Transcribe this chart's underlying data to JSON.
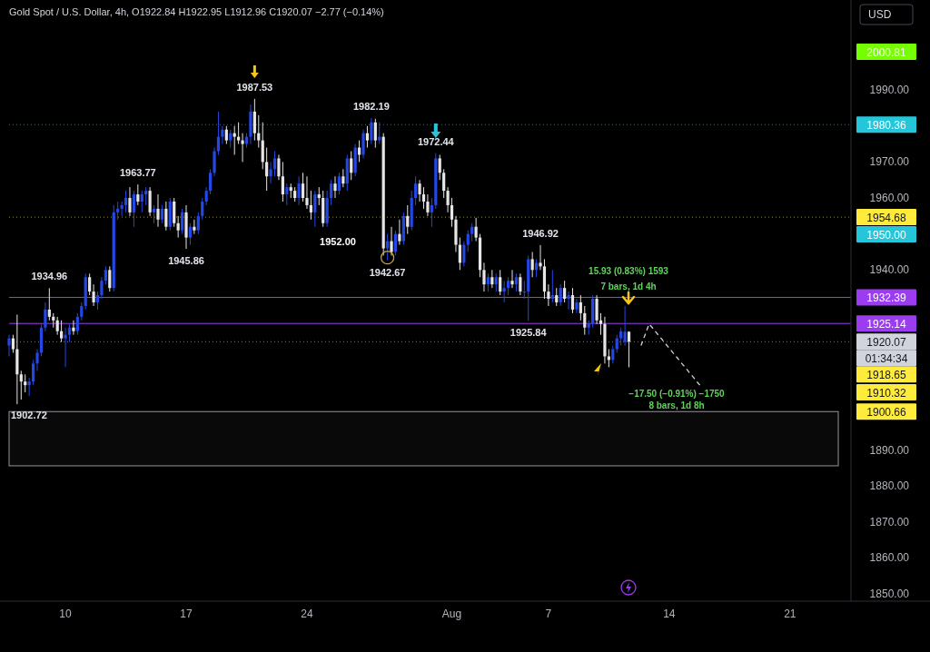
{
  "chart_data": {
    "type": "candlestick",
    "title": "Gold Spot / U.S. Dollar, 4h, O1922.84 H1922.95 L1912.96 C1920.07 −2.77 (−0.14%)",
    "categories": [
      null,
      null,
      null,
      null,
      null,
      null,
      null,
      null,
      null,
      null,
      null,
      null,
      null,
      null,
      "10",
      null,
      null,
      null,
      null,
      null,
      null,
      null,
      null,
      null,
      null,
      null,
      null,
      null,
      null,
      null,
      null,
      null,
      null,
      null,
      null,
      null,
      null,
      null,
      null,
      null,
      null,
      null,
      null,
      null,
      "17",
      null,
      null,
      null,
      null,
      null,
      null,
      null,
      null,
      null,
      null,
      null,
      null,
      null,
      null,
      null,
      null,
      null,
      null,
      null,
      null,
      null,
      null,
      null,
      null,
      null,
      null,
      null,
      null,
      null,
      "24",
      null,
      null,
      null,
      null,
      null,
      null,
      null,
      null,
      null,
      null,
      null,
      null,
      null,
      null,
      null,
      null,
      null,
      null,
      null,
      null,
      null,
      null,
      null,
      null,
      null,
      null,
      null,
      null,
      null,
      null,
      null,
      null,
      null,
      null,
      null,
      "Aug",
      null,
      null,
      null,
      null,
      null,
      null,
      null,
      null,
      null,
      null,
      null,
      null,
      null,
      null,
      null,
      null,
      null,
      null,
      null,
      null,
      null,
      null,
      null,
      "7",
      null,
      null,
      null,
      null,
      null,
      null,
      null,
      null,
      null,
      null,
      null,
      null,
      null,
      null,
      null,
      null,
      null,
      null,
      null,
      null,
      null,
      null,
      null,
      null,
      null,
      null,
      null,
      null,
      null,
      "14",
      null,
      null,
      null,
      null,
      null,
      null,
      null,
      null,
      null,
      null,
      null,
      null,
      null,
      null,
      null,
      null,
      null,
      null,
      null,
      null,
      null,
      null,
      null,
      null,
      null,
      null,
      null,
      null,
      null,
      "21",
      null,
      null,
      null,
      null,
      null,
      null,
      null,
      null,
      null,
      null,
      null,
      null
    ],
    "ohlc": [
      [
        1919,
        1922,
        1916,
        1921
      ],
      [
        1921,
        1922,
        1917,
        1918
      ],
      [
        1918,
        1927.6,
        1902.72,
        1911
      ],
      [
        1911,
        1912,
        1904,
        1909
      ],
      [
        1909,
        1911,
        1906,
        1908
      ],
      [
        1908,
        1910,
        1905,
        1909
      ],
      [
        1909,
        1915,
        1908,
        1914
      ],
      [
        1914,
        1918,
        1912,
        1917
      ],
      [
        1917,
        1925,
        1916,
        1924
      ],
      [
        1924,
        1931,
        1923,
        1929
      ],
      [
        1929,
        1934.96,
        1926,
        1927
      ],
      [
        1927,
        1928,
        1924,
        1926
      ],
      [
        1926,
        1927,
        1922,
        1923
      ],
      [
        1923,
        1926,
        1920,
        1921
      ],
      [
        1921,
        1924,
        1913,
        1922
      ],
      [
        1922,
        1925,
        1920,
        1924
      ],
      [
        1924,
        1926,
        1922,
        1923
      ],
      [
        1923,
        1928,
        1922,
        1927
      ],
      [
        1927,
        1931,
        1926,
        1930
      ],
      [
        1930,
        1939,
        1929,
        1938
      ],
      [
        1938,
        1939,
        1933,
        1934
      ],
      [
        1934,
        1936,
        1930,
        1931
      ],
      [
        1931,
        1934,
        1929,
        1933
      ],
      [
        1933,
        1938,
        1932,
        1937
      ],
      [
        1937,
        1941,
        1936,
        1940
      ],
      [
        1940,
        1941,
        1934,
        1935
      ],
      [
        1935,
        1958,
        1934,
        1956
      ],
      [
        1956,
        1959,
        1954,
        1957
      ],
      [
        1957,
        1959,
        1955,
        1958
      ],
      [
        1958,
        1962,
        1956,
        1960
      ],
      [
        1960,
        1963,
        1955,
        1956
      ],
      [
        1956,
        1962,
        1952,
        1961
      ],
      [
        1961,
        1963.77,
        1958,
        1959
      ],
      [
        1959,
        1962,
        1956,
        1961
      ],
      [
        1961,
        1963,
        1958,
        1962
      ],
      [
        1962,
        1963,
        1955,
        1956
      ],
      [
        1956,
        1958,
        1953,
        1957
      ],
      [
        1957,
        1961,
        1952,
        1954
      ],
      [
        1954,
        1958,
        1953,
        1957
      ],
      [
        1957,
        1959,
        1951,
        1952
      ],
      [
        1952,
        1960,
        1951,
        1959
      ],
      [
        1959,
        1960,
        1952,
        1953
      ],
      [
        1953,
        1955,
        1949,
        1951
      ],
      [
        1951,
        1957,
        1950,
        1956
      ],
      [
        1956,
        1958,
        1945.86,
        1949
      ],
      [
        1949,
        1953,
        1947,
        1952
      ],
      [
        1952,
        1954,
        1950,
        1951
      ],
      [
        1951,
        1956,
        1950,
        1955
      ],
      [
        1955,
        1960,
        1954,
        1959
      ],
      [
        1959,
        1963,
        1958,
        1962
      ],
      [
        1962,
        1968,
        1961,
        1967
      ],
      [
        1967,
        1974,
        1966,
        1973
      ],
      [
        1973,
        1984,
        1972,
        1977
      ],
      [
        1977,
        1980,
        1975,
        1979
      ],
      [
        1979,
        1980,
        1975,
        1976
      ],
      [
        1976,
        1979,
        1974,
        1978
      ],
      [
        1978,
        1980,
        1972,
        1977
      ],
      [
        1977,
        1981,
        1975,
        1976
      ],
      [
        1976,
        1978,
        1970,
        1975
      ],
      [
        1975,
        1978,
        1974,
        1977
      ],
      [
        1977,
        1986,
        1975,
        1984
      ],
      [
        1984,
        1987.53,
        1976,
        1978
      ],
      [
        1978,
        1983,
        1974,
        1976
      ],
      [
        1976,
        1981,
        1968,
        1970
      ],
      [
        1970,
        1974,
        1962,
        1966
      ],
      [
        1966,
        1970,
        1964,
        1968
      ],
      [
        1968,
        1973,
        1966,
        1971
      ],
      [
        1971,
        1972,
        1965,
        1966
      ],
      [
        1966,
        1970,
        1959,
        1961
      ],
      [
        1961,
        1964,
        1958,
        1963
      ],
      [
        1963,
        1964,
        1960,
        1962
      ],
      [
        1962,
        1963,
        1959,
        1960
      ],
      [
        1960,
        1966,
        1958,
        1964
      ],
      [
        1964,
        1967,
        1959,
        1960
      ],
      [
        1960,
        1966,
        1957,
        1958
      ],
      [
        1958,
        1962,
        1954,
        1956
      ],
      [
        1956,
        1962,
        1952,
        1961
      ],
      [
        1961,
        1963,
        1958,
        1960
      ],
      [
        1960,
        1962,
        1952,
        1953
      ],
      [
        1953,
        1962,
        1952,
        1960
      ],
      [
        1960,
        1965,
        1958,
        1964
      ],
      [
        1964,
        1966,
        1960,
        1962
      ],
      [
        1962,
        1967,
        1961,
        1966
      ],
      [
        1966,
        1968,
        1963,
        1964
      ],
      [
        1964,
        1972,
        1962,
        1971
      ],
      [
        1971,
        1973,
        1965,
        1967
      ],
      [
        1967,
        1975,
        1966,
        1974
      ],
      [
        1974,
        1976,
        1970,
        1972
      ],
      [
        1972,
        1979,
        1971,
        1978
      ],
      [
        1978,
        1980,
        1974,
        1976
      ],
      [
        1976,
        1982.19,
        1975,
        1981
      ],
      [
        1981,
        1982,
        1974,
        1976
      ],
      [
        1976,
        1981,
        1975,
        1977
      ],
      [
        1977,
        1978,
        1944,
        1946
      ],
      [
        1946,
        1950,
        1942.67,
        1948
      ],
      [
        1948,
        1952,
        1944,
        1945
      ],
      [
        1945,
        1951,
        1944,
        1950
      ],
      [
        1950,
        1954,
        1947,
        1948
      ],
      [
        1948,
        1956,
        1947,
        1955
      ],
      [
        1955,
        1958,
        1950,
        1952
      ],
      [
        1952,
        1962,
        1951,
        1960
      ],
      [
        1960,
        1966,
        1958,
        1964
      ],
      [
        1964,
        1965,
        1959,
        1961
      ],
      [
        1961,
        1963,
        1957,
        1959
      ],
      [
        1959,
        1961,
        1955,
        1956
      ],
      [
        1956,
        1960,
        1952,
        1958
      ],
      [
        1958,
        1972.44,
        1957,
        1971
      ],
      [
        1971,
        1972,
        1965,
        1967
      ],
      [
        1967,
        1968,
        1960,
        1962
      ],
      [
        1962,
        1963,
        1956,
        1958
      ],
      [
        1958,
        1960,
        1952,
        1954
      ],
      [
        1954,
        1955,
        1945,
        1947
      ],
      [
        1947,
        1949,
        1940,
        1942
      ],
      [
        1942,
        1948,
        1941,
        1947
      ],
      [
        1947,
        1951,
        1945,
        1950
      ],
      [
        1950,
        1953,
        1948,
        1952
      ],
      [
        1952,
        1954.5,
        1948,
        1949
      ],
      [
        1949,
        1950,
        1938,
        1940
      ],
      [
        1940,
        1942,
        1934,
        1936
      ],
      [
        1936,
        1939,
        1934,
        1938
      ],
      [
        1938,
        1940,
        1935,
        1936
      ],
      [
        1936,
        1939,
        1934,
        1938
      ],
      [
        1938,
        1940,
        1933,
        1934
      ],
      [
        1934,
        1937,
        1931,
        1935
      ],
      [
        1935,
        1938,
        1933,
        1937
      ],
      [
        1937,
        1940,
        1935,
        1936
      ],
      [
        1936,
        1939,
        1934,
        1938
      ],
      [
        1938,
        1939,
        1933,
        1934
      ],
      [
        1934,
        1937,
        1932,
        1934
      ],
      [
        1934,
        1944,
        1925.84,
        1943
      ],
      [
        1943,
        1945,
        1938,
        1940
      ],
      [
        1940,
        1943,
        1938,
        1942
      ],
      [
        1942,
        1946.92,
        1940,
        1941
      ],
      [
        1941,
        1943,
        1932,
        1934
      ],
      [
        1934,
        1936,
        1930,
        1932
      ],
      [
        1932,
        1940,
        1931,
        1933
      ],
      [
        1933,
        1935,
        1930,
        1931
      ],
      [
        1931,
        1936,
        1930,
        1935
      ],
      [
        1935,
        1937,
        1931,
        1932
      ],
      [
        1932,
        1934,
        1929,
        1933
      ],
      [
        1933,
        1935,
        1928,
        1929
      ],
      [
        1929,
        1932,
        1928,
        1931
      ],
      [
        1931,
        1933,
        1926,
        1928
      ],
      [
        1928,
        1930,
        1922,
        1924
      ],
      [
        1924,
        1926,
        1922,
        1925
      ],
      [
        1925,
        1933,
        1924,
        1932
      ],
      [
        1932,
        1933,
        1925,
        1926
      ],
      [
        1926,
        1928,
        1922,
        1925
      ],
      [
        1925,
        1927,
        1914,
        1916
      ],
      [
        1916,
        1918,
        1913,
        1915
      ],
      [
        1915,
        1919,
        1914,
        1918
      ],
      [
        1918,
        1922,
        1917,
        1921
      ],
      [
        1921,
        1924,
        1919,
        1923
      ],
      [
        1920,
        1930,
        1919,
        1922.84
      ],
      [
        1922.84,
        1922.95,
        1912.96,
        1920.07
      ],
      null,
      null,
      null,
      null,
      null,
      null,
      null,
      null,
      null,
      null,
      null,
      null,
      null,
      null,
      null,
      null,
      null,
      null,
      null,
      null,
      null,
      null,
      null,
      null,
      null,
      null,
      null,
      null,
      null,
      null,
      null,
      null,
      null,
      null,
      null,
      null,
      null,
      null,
      null,
      null,
      null,
      null,
      null,
      null,
      null,
      null,
      null,
      null,
      null,
      null,
      null,
      null
    ],
    "series": [
      {
        "type": "line",
        "color": "#d1d4dc",
        "line_style": "dashed",
        "values": [
          null,
          null,
          null,
          null,
          null,
          null,
          null,
          null,
          null,
          null,
          null,
          null,
          null,
          null,
          null,
          null,
          null,
          null,
          null,
          null,
          null,
          null,
          null,
          null,
          null,
          null,
          null,
          null,
          null,
          null,
          null,
          null,
          null,
          null,
          null,
          null,
          null,
          null,
          null,
          null,
          null,
          null,
          null,
          null,
          null,
          null,
          null,
          null,
          null,
          null,
          null,
          null,
          null,
          null,
          null,
          null,
          null,
          null,
          null,
          null,
          null,
          null,
          null,
          null,
          null,
          null,
          null,
          null,
          null,
          null,
          null,
          null,
          null,
          null,
          null,
          null,
          null,
          null,
          null,
          null,
          null,
          null,
          null,
          null,
          null,
          null,
          null,
          null,
          null,
          null,
          null,
          null,
          null,
          null,
          null,
          null,
          null,
          null,
          null,
          null,
          null,
          null,
          null,
          null,
          null,
          null,
          null,
          null,
          null,
          null,
          null,
          null,
          null,
          null,
          null,
          null,
          null,
          null,
          null,
          null,
          null,
          null,
          null,
          null,
          null,
          null,
          null,
          null,
          null,
          null,
          null,
          null,
          null,
          null,
          null,
          null,
          null,
          null,
          null,
          null,
          null,
          null,
          null,
          null,
          null,
          null,
          null,
          null,
          null,
          null,
          null,
          null,
          null,
          null,
          null,
          null,
          null,
          1919,
          1922,
          1925,
          1923.7,
          1922.3,
          1921,
          1919.6,
          1918.3,
          1916.9,
          1915.6,
          1914.2,
          1912.9,
          1911.5,
          1910.2,
          1908.8,
          1907.5,
          null,
          null,
          null,
          null,
          null,
          null,
          null,
          null,
          null,
          null,
          null,
          null,
          null,
          null,
          null,
          null,
          null,
          null,
          null,
          null,
          null,
          null,
          null,
          null,
          null,
          null,
          null,
          null,
          null,
          null,
          null,
          null,
          null,
          null
        ]
      }
    ],
    "ylim": [
      1848,
      2015
    ],
    "yticks": [
      {
        "value": 1850,
        "label": "1850.00"
      },
      {
        "value": 1860,
        "label": "1860.00"
      },
      {
        "value": 1870,
        "label": "1870.00"
      },
      {
        "value": 1880,
        "label": "1880.00"
      },
      {
        "value": 1890,
        "label": "1890.00"
      },
      {
        "value": 1940,
        "label": "1940.00"
      },
      {
        "value": 1960,
        "label": "1960.00"
      },
      {
        "value": 1970,
        "label": "1970.00"
      },
      {
        "value": 1990,
        "label": "1990.00"
      }
    ],
    "ref_lines": [
      {
        "axis": "y",
        "value": 1980.36,
        "label": "1980.36",
        "color": "#26c6da",
        "line_style": "dotted"
      },
      {
        "axis": "y",
        "value": 1954.68,
        "label": "1954.68",
        "color": "#ffeb3b",
        "line_style": "dotted"
      },
      {
        "axis": "y",
        "value": 1932.39,
        "label": "1932.39",
        "color": "#9c3cf0",
        "line_style": "solid"
      },
      {
        "axis": "y",
        "value": 1925.14,
        "label": "1925.14",
        "color": "#9c3cf0",
        "line_style": "solid"
      },
      {
        "axis": "y",
        "value": 1920.07,
        "label": "1920.07",
        "color": "#d1d4dc",
        "line_style": "dotted"
      }
    ],
    "bands": [
      {
        "axis": "y",
        "from": 1885.6,
        "to": 1900.66,
        "label": "1900.66",
        "color": "#9598a1"
      }
    ],
    "annotations": [
      "USD",
      "01:34:34",
      {
        "text": "1987.53",
        "y": 1987.53
      },
      {
        "text": "1982.19",
        "y": 1982.19
      },
      {
        "text": "1972.44",
        "y": 1972.44
      },
      {
        "text": "1963.77",
        "y": 1963.77
      },
      {
        "text": "1945.86",
        "y": 1945.86
      },
      "1952.00",
      {
        "text": "1942.67",
        "y": 1942.67
      },
      {
        "text": "1934.96",
        "y": 1934.96
      },
      {
        "text": "1946.92",
        "y": 1946.92
      },
      {
        "text": "1925.84",
        "y": 1925.84
      },
      "1902.72",
      "15.93 (0.83%) 1593",
      "7 bars, 1d 4h",
      "−17.50 (−0.91%) −1750",
      "8 bars, 1d 8h",
      "2000.81",
      "1950.00",
      "1918.65",
      "1910.32"
    ]
  }
}
